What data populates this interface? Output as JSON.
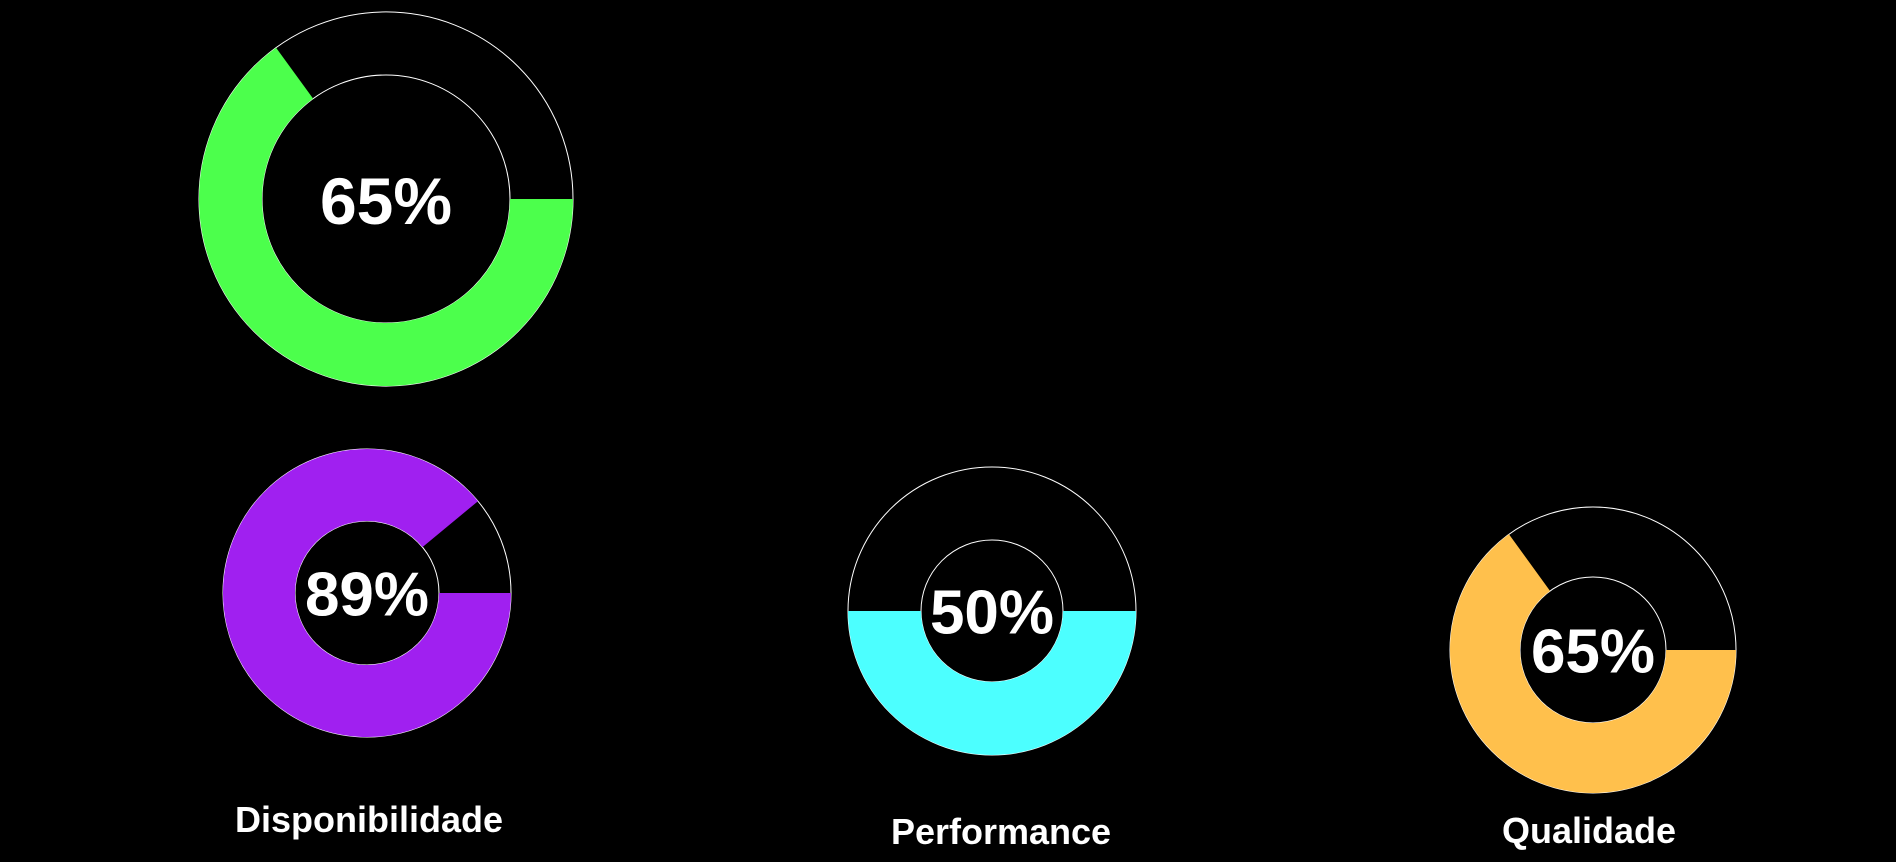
{
  "chart_data": [
    {
      "type": "pie",
      "variant": "donut-gauge",
      "value": 65,
      "max": 100,
      "label_text": "65%",
      "caption": "",
      "color": "#4cff4c",
      "track_outline_color": "#ffffff"
    },
    {
      "type": "pie",
      "variant": "donut-gauge",
      "value": 89,
      "max": 100,
      "label_text": "89%",
      "caption": "Disponibilidade",
      "color": "#a020f0",
      "track_outline_color": "#ffffff"
    },
    {
      "type": "pie",
      "variant": "donut-gauge",
      "value": 50,
      "max": 100,
      "label_text": "50%",
      "caption": "Performance",
      "color": "#4cffff",
      "track_outline_color": "#ffffff"
    },
    {
      "type": "pie",
      "variant": "donut-gauge",
      "value": 65,
      "max": 100,
      "label_text": "65%",
      "caption": "Qualidade",
      "color": "#ffc04c",
      "track_outline_color": "#ffffff"
    }
  ]
}
